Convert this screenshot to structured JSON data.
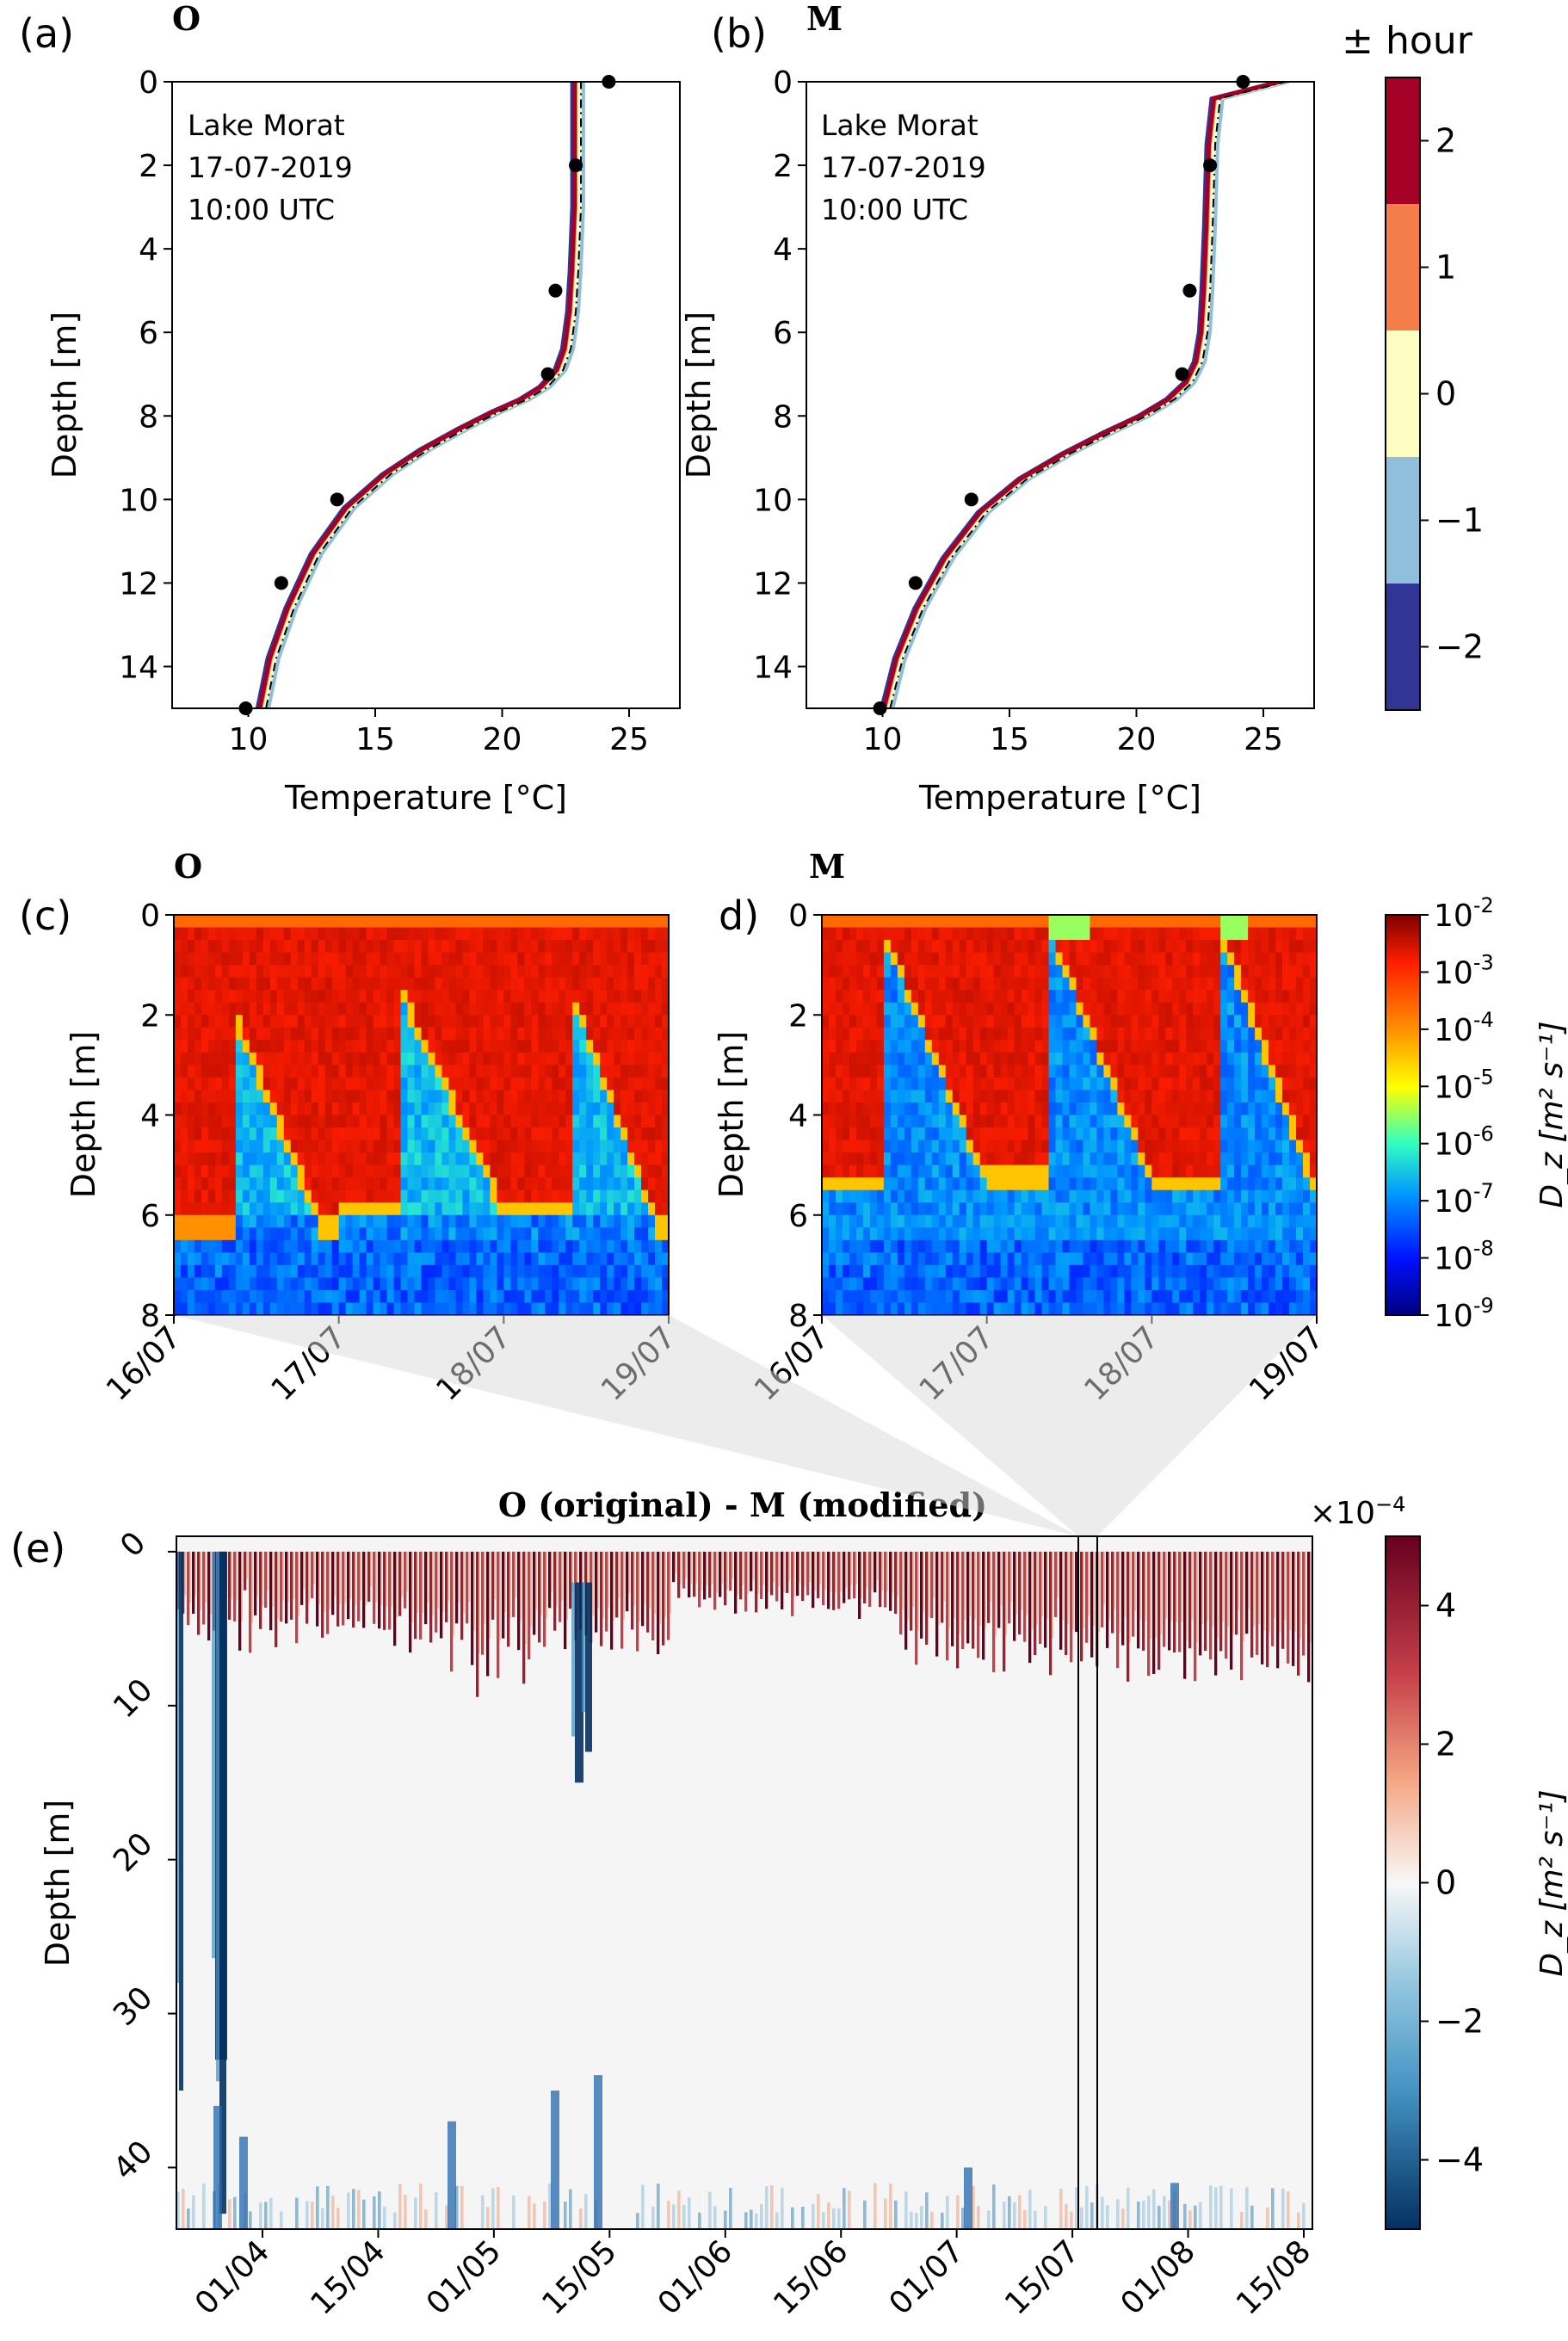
{
  "chart_data": [
    {
      "panel": "(a)",
      "title": "O",
      "type": "line",
      "annotation": [
        "Lake Morat",
        "17-07-2019",
        "10:00 UTC"
      ],
      "xlabel": "Temperature [°C]",
      "ylabel": "Depth [m]",
      "xlim": [
        7,
        27
      ],
      "ylim": [
        15,
        0
      ],
      "xticks": [
        "10",
        "15",
        "20",
        "25"
      ],
      "yticks": [
        "0",
        "2",
        "4",
        "6",
        "8",
        "10",
        "12",
        "14"
      ],
      "observations": [
        {
          "x": 24.2,
          "y": 0
        },
        {
          "x": 22.9,
          "y": 2
        },
        {
          "x": 22.1,
          "y": 5
        },
        {
          "x": 21.8,
          "y": 7
        },
        {
          "x": 13.5,
          "y": 10
        },
        {
          "x": 11.3,
          "y": 12
        },
        {
          "x": 9.9,
          "y": 15
        }
      ],
      "profile": {
        "x": [
          10.6,
          11.0,
          11.7,
          12.7,
          14.0,
          15.5,
          17.0,
          18.5,
          19.8,
          20.9,
          21.7,
          22.3,
          22.6,
          22.8,
          22.9,
          23.0,
          23.0,
          23.0
        ],
        "y": [
          15,
          13.8,
          12.6,
          11.3,
          10.2,
          9.4,
          8.8,
          8.3,
          7.9,
          7.6,
          7.3,
          6.9,
          6.4,
          5.5,
          4.5,
          3.0,
          1.5,
          0
        ]
      }
    },
    {
      "panel": "(b)",
      "title": "M",
      "type": "line",
      "annotation": [
        "Lake Morat",
        "17-07-2019",
        "10:00 UTC"
      ],
      "xlabel": "Temperature [°C]",
      "ylabel": "Depth [m]",
      "xlim": [
        7,
        27
      ],
      "ylim": [
        15,
        0
      ],
      "xticks": [
        "10",
        "15",
        "20",
        "25"
      ],
      "yticks": [
        "0",
        "2",
        "4",
        "6",
        "8",
        "10",
        "12",
        "14"
      ],
      "observations": [
        {
          "x": 24.2,
          "y": 0
        },
        {
          "x": 22.9,
          "y": 2
        },
        {
          "x": 22.1,
          "y": 5
        },
        {
          "x": 21.8,
          "y": 7
        },
        {
          "x": 13.5,
          "y": 10
        },
        {
          "x": 11.3,
          "y": 12
        },
        {
          "x": 9.9,
          "y": 15
        }
      ],
      "profile": {
        "x": [
          10.2,
          10.7,
          11.5,
          12.6,
          14.0,
          15.6,
          17.3,
          18.9,
          20.3,
          21.4,
          22.1,
          22.5,
          22.7,
          22.8,
          22.9,
          23.0,
          23.2,
          25.8
        ],
        "y": [
          15,
          13.8,
          12.6,
          11.4,
          10.3,
          9.5,
          8.9,
          8.4,
          8.0,
          7.6,
          7.2,
          6.7,
          6.0,
          5.0,
          3.5,
          1.5,
          0.4,
          0
        ]
      }
    },
    {
      "panel": "colorbar-hour",
      "type": "colorbar",
      "label": "± hour",
      "ticks": [
        "2",
        "1",
        "0",
        "−1",
        "−2"
      ],
      "colors": [
        "#a50026",
        "#f47d4a",
        "#fefdc1",
        "#90bfdb",
        "#313695"
      ]
    },
    {
      "panel": "(c)",
      "title": "O",
      "type": "heatmap",
      "ylabel": "Depth [m]",
      "ylim": [
        8,
        0
      ],
      "yticks": [
        "0",
        "2",
        "4",
        "6",
        "8"
      ],
      "xticks": [
        "16/07",
        "17/07",
        "18/07",
        "19/07"
      ],
      "scale": "log",
      "range": [
        -9,
        -2
      ]
    },
    {
      "panel": "d)",
      "title": "M",
      "type": "heatmap",
      "ylabel": "Depth [m]",
      "ylim": [
        8,
        0
      ],
      "yticks": [
        "0",
        "2",
        "4",
        "6",
        "8"
      ],
      "xticks": [
        "16/07",
        "17/07",
        "18/07",
        "19/07"
      ],
      "scale": "log",
      "range": [
        -9,
        -2
      ]
    },
    {
      "panel": "colorbar-dz",
      "type": "colorbar",
      "label": "D_z [m² s⁻¹]",
      "ticks": [
        "-2",
        "-3",
        "-4",
        "-5",
        "-6",
        "-7",
        "-8",
        "-9"
      ]
    },
    {
      "panel": "(e)",
      "title": "O (original) - M (modified)",
      "type": "heatmap",
      "ylabel": "Depth [m]",
      "ylim": [
        44,
        -1
      ],
      "yticks": [
        "0",
        "10",
        "20",
        "30",
        "40"
      ],
      "xticks": [
        "01/04",
        "15/04",
        "01/05",
        "15/05",
        "01/06",
        "15/06",
        "01/07",
        "15/07",
        "01/08",
        "15/08"
      ],
      "highlight": "16/07 – 19/07",
      "colorbar": {
        "label": "D_z [m² s⁻¹]",
        "multiplier": "×10",
        "multiplier_exp": "−4",
        "ticks": [
          "4",
          "2",
          "0",
          "−2",
          "−4"
        ],
        "range": [
          -5,
          5
        ]
      }
    }
  ]
}
